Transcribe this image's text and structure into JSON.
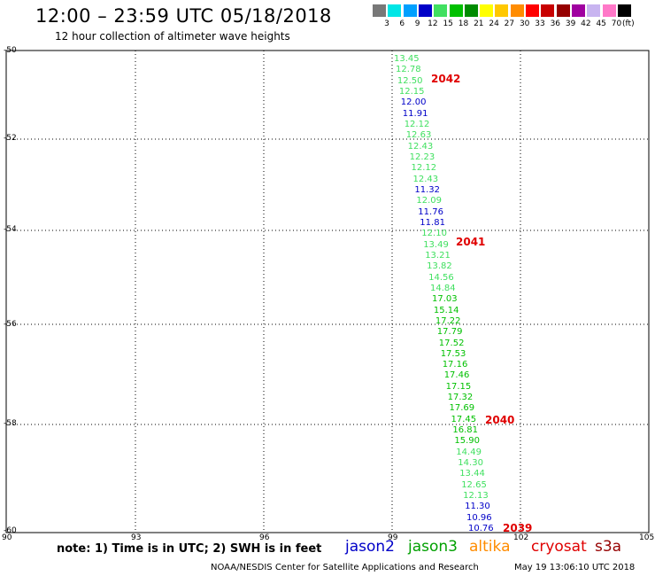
{
  "header": {
    "title": "12:00 – 23:59 UTC 05/18/2018",
    "subtitle": "12 hour collection of altimeter wave heights"
  },
  "legend_scale": {
    "labels": [
      "3",
      "6",
      "9",
      "12",
      "15",
      "18",
      "21",
      "24",
      "27",
      "30",
      "33",
      "36",
      "39",
      "42",
      "45",
      "70",
      "(ft)"
    ],
    "colors": [
      "#787878",
      "#00e6e6",
      "#00a0ff",
      "#0000c8",
      "#40e060",
      "#00c000",
      "#008c00",
      "#ffff00",
      "#ffc800",
      "#ff8c00",
      "#ff0000",
      "#c80000",
      "#960000",
      "#a000a0",
      "#c8b4f0",
      "#ff78c8",
      "#000000"
    ]
  },
  "axes": {
    "lat_labels": [
      "-50",
      "-52",
      "-54",
      "-56",
      "-58",
      "-60"
    ],
    "lon_labels": [
      "90",
      "93",
      "96",
      "99",
      "102",
      "105"
    ]
  },
  "observations": [
    {
      "v": "13.45",
      "c": "#40e060"
    },
    {
      "v": "12.78",
      "c": "#40e060"
    },
    {
      "v": "12.50",
      "c": "#40e060"
    },
    {
      "v": "12.15",
      "c": "#40e060"
    },
    {
      "v": "12.00",
      "c": "#0000c8"
    },
    {
      "v": "11.91",
      "c": "#0000c8"
    },
    {
      "v": "12.12",
      "c": "#40e060"
    },
    {
      "v": "12.63",
      "c": "#40e060"
    },
    {
      "v": "12.43",
      "c": "#40e060"
    },
    {
      "v": "12.23",
      "c": "#40e060"
    },
    {
      "v": "12.12",
      "c": "#40e060"
    },
    {
      "v": "12.43",
      "c": "#40e060"
    },
    {
      "v": "11.32",
      "c": "#0000c8"
    },
    {
      "v": "12.09",
      "c": "#40e060"
    },
    {
      "v": "11.76",
      "c": "#0000c8"
    },
    {
      "v": "11.81",
      "c": "#0000c8"
    },
    {
      "v": "12.10",
      "c": "#40e060"
    },
    {
      "v": "13.49",
      "c": "#40e060"
    },
    {
      "v": "13.21",
      "c": "#40e060"
    },
    {
      "v": "13.82",
      "c": "#40e060"
    },
    {
      "v": "14.56",
      "c": "#40e060"
    },
    {
      "v": "14.84",
      "c": "#40e060"
    },
    {
      "v": "17.03",
      "c": "#00c000"
    },
    {
      "v": "15.14",
      "c": "#00c000"
    },
    {
      "v": "17.22",
      "c": "#00c000"
    },
    {
      "v": "17.79",
      "c": "#00c000"
    },
    {
      "v": "17.52",
      "c": "#00c000"
    },
    {
      "v": "17.53",
      "c": "#00c000"
    },
    {
      "v": "17.16",
      "c": "#00c000"
    },
    {
      "v": "17.46",
      "c": "#00c000"
    },
    {
      "v": "17.15",
      "c": "#00c000"
    },
    {
      "v": "17.32",
      "c": "#00c000"
    },
    {
      "v": "17.69",
      "c": "#00c000"
    },
    {
      "v": "17.45",
      "c": "#00c000"
    },
    {
      "v": "16.81",
      "c": "#00c000"
    },
    {
      "v": "15.90",
      "c": "#00c000"
    },
    {
      "v": "14.49",
      "c": "#40e060"
    },
    {
      "v": "14.30",
      "c": "#40e060"
    },
    {
      "v": "13.44",
      "c": "#40e060"
    },
    {
      "v": "12.65",
      "c": "#40e060"
    },
    {
      "v": "12.13",
      "c": "#40e060"
    },
    {
      "v": "11.30",
      "c": "#0000c8"
    },
    {
      "v": "10.96",
      "c": "#0000c8"
    },
    {
      "v": "10.76",
      "c": "#0000c8"
    }
  ],
  "orbit_times": [
    "2042",
    "2041",
    "2040",
    "2039"
  ],
  "orbit_color": "#e00000",
  "note": "note: 1) Time is in UTC; 2) SWH is in feet",
  "satellites": [
    {
      "name": "jason2",
      "color": "#0000c8"
    },
    {
      "name": "jason3",
      "color": "#00a000"
    },
    {
      "name": "altika",
      "color": "#ff8c00"
    },
    {
      "name": "cryosat",
      "color": "#e00000"
    },
    {
      "name": "s3a",
      "color": "#960000"
    }
  ],
  "footer": {
    "credit": "NOAA/NESDIS Center for Satellite Applications and Research",
    "timestamp": "May 19 13:06:10 UTC 2018"
  }
}
